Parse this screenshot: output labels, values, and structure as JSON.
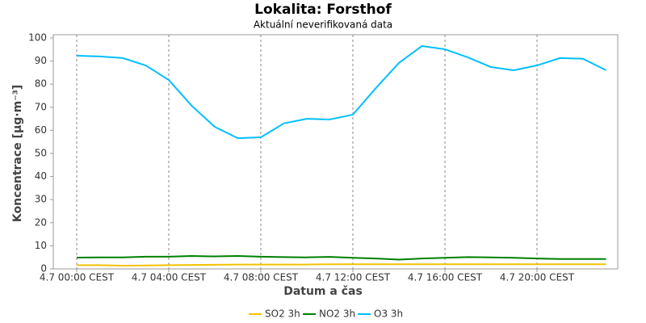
{
  "chart_data": {
    "type": "line",
    "title": "Lokalita: Forsthof",
    "subtitle": "Aktuální neverifikovaná data",
    "x_label": "Datum a čas",
    "y_label": "Koncentrace [µg·m⁻³]",
    "categories": [
      "4.7 00:00 CEST",
      null,
      null,
      null,
      "4.7 04:00 CEST",
      null,
      null,
      null,
      "4.7 08:00 CEST",
      null,
      null,
      null,
      "4.7 12:00 CEST",
      null,
      null,
      null,
      "4.7 16:00 CEST",
      null,
      null,
      null,
      "4.7 20:00 CEST",
      null,
      null,
      null
    ],
    "series": [
      {
        "name": "SO2 3h",
        "color": "#f2c200",
        "values": [
          1.6,
          1.6,
          1.4,
          1.5,
          1.6,
          1.7,
          1.8,
          1.9,
          1.9,
          1.9,
          1.9,
          2,
          2,
          2,
          2,
          2,
          2,
          2,
          2,
          2,
          2,
          2,
          2,
          2
        ]
      },
      {
        "name": "NO2 3h",
        "color": "#008000",
        "values": [
          4.9,
          5,
          5,
          5.3,
          5.3,
          5.6,
          5.4,
          5.6,
          5.3,
          5.1,
          5,
          5.2,
          4.8,
          4.5,
          4,
          4.5,
          4.8,
          5.1,
          5,
          4.8,
          4.5,
          4.3,
          4.3,
          4.3
        ]
      },
      {
        "name": "O3 3h",
        "color": "#00bfff",
        "values": [
          92.3,
          92,
          91.3,
          88.1,
          81.8,
          70.6,
          61.5,
          56.6,
          57,
          63,
          65,
          64.7,
          66.8,
          78.3,
          89.2,
          96.5,
          95.1,
          91.6,
          87.4,
          86,
          88.1,
          91.3,
          91,
          86
        ]
      }
    ],
    "ylim": [
      0,
      100
    ],
    "yticks": [
      0,
      10,
      20,
      30,
      40,
      50,
      60,
      70,
      80,
      90,
      100
    ],
    "grid": "x",
    "legend": "bottom"
  }
}
